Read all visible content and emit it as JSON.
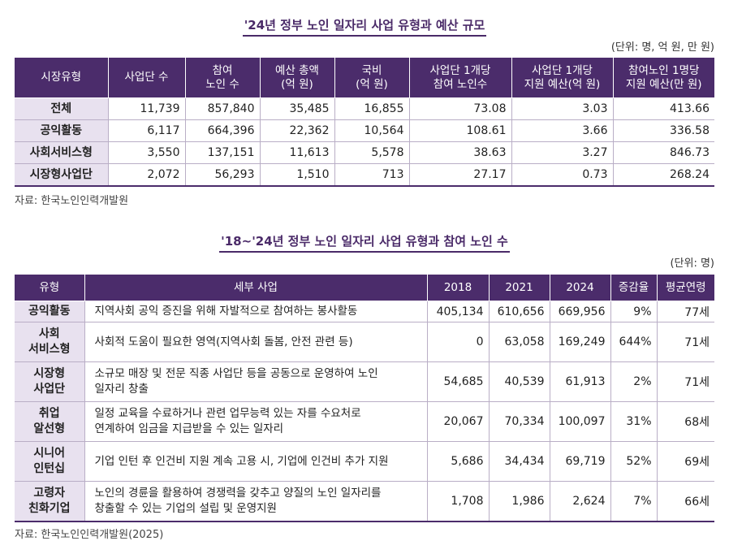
{
  "table1": {
    "title": "'24년 정부 노인 일자리 사업 유형과 예산 규모",
    "unit": "(단위: 명, 억 원, 만 원)",
    "headers": [
      "시장유형",
      "사업단 수",
      "참여\n노인 수",
      "예산 총액\n(억 원)",
      "국비\n(억 원)",
      "사업단 1개당\n참여 노인수",
      "사업단 1개당\n지원 예산(억 원)",
      "참여노인 1명당\n지원 예산(만 원)"
    ],
    "rows": [
      [
        "전체",
        "11,739",
        "857,840",
        "35,485",
        "16,855",
        "73.08",
        "3.03",
        "413.66"
      ],
      [
        "공익활동",
        "6,117",
        "664,396",
        "22,362",
        "10,564",
        "108.61",
        "3.66",
        "336.58"
      ],
      [
        "사회서비스형",
        "3,550",
        "137,151",
        "11,613",
        "5,578",
        "38.63",
        "3.27",
        "846.73"
      ],
      [
        "시장형사업단",
        "2,072",
        "56,293",
        "1,510",
        "713",
        "27.17",
        "0.73",
        "268.24"
      ]
    ],
    "source": "자료: 한국노인인력개발원"
  },
  "table2": {
    "title": "'18~'24년 정부 노인 일자리 사업 유형과 참여 노인 수",
    "unit": "(단위: 명)",
    "headers": [
      "유형",
      "세부 사업",
      "2018",
      "2021",
      "2024",
      "증감율",
      "평균연령"
    ],
    "rows": [
      [
        "공익활동",
        "지역사회 공익 증진을 위해 자발적으로 참여하는 봉사활동",
        "405,134",
        "610,656",
        "669,956",
        "9%",
        "77세"
      ],
      [
        "사회\n서비스형",
        "사회적 도움이 필요한 영역(지역사회 돌봄, 안전 관련 등)",
        "0",
        "63,058",
        "169,249",
        "644%",
        "71세"
      ],
      [
        "시장형\n사업단",
        "소규모 매장 및 전문 직종 사업단 등을 공동으로 운영하여 노인\n일자리 창출",
        "54,685",
        "40,539",
        "61,913",
        "2%",
        "71세"
      ],
      [
        "취업\n알선형",
        "일정 교육을 수료하거나 관련 업무능력 있는 자를 수요처로\n연계하여 임금을 지급받을 수 있는 일자리",
        "20,067",
        "70,334",
        "100,097",
        "31%",
        "68세"
      ],
      [
        "시니어\n인턴십",
        "기업 인턴 후 인건비 지원 계속 고용 시, 기업에 인건비 추가 지원",
        "5,686",
        "34,434",
        "69,719",
        "52%",
        "69세"
      ],
      [
        "고령자\n친화기업",
        "노인의 경륜을 활용하여 경쟁력을 갖추고 양질의 노인 일자리를\n창출할 수 있는 기업의 설립 및 운영지원",
        "1,708",
        "1,986",
        "2,624",
        "7%",
        "66세"
      ]
    ],
    "source": "자료: 한국노인인력개발원(2025)"
  }
}
